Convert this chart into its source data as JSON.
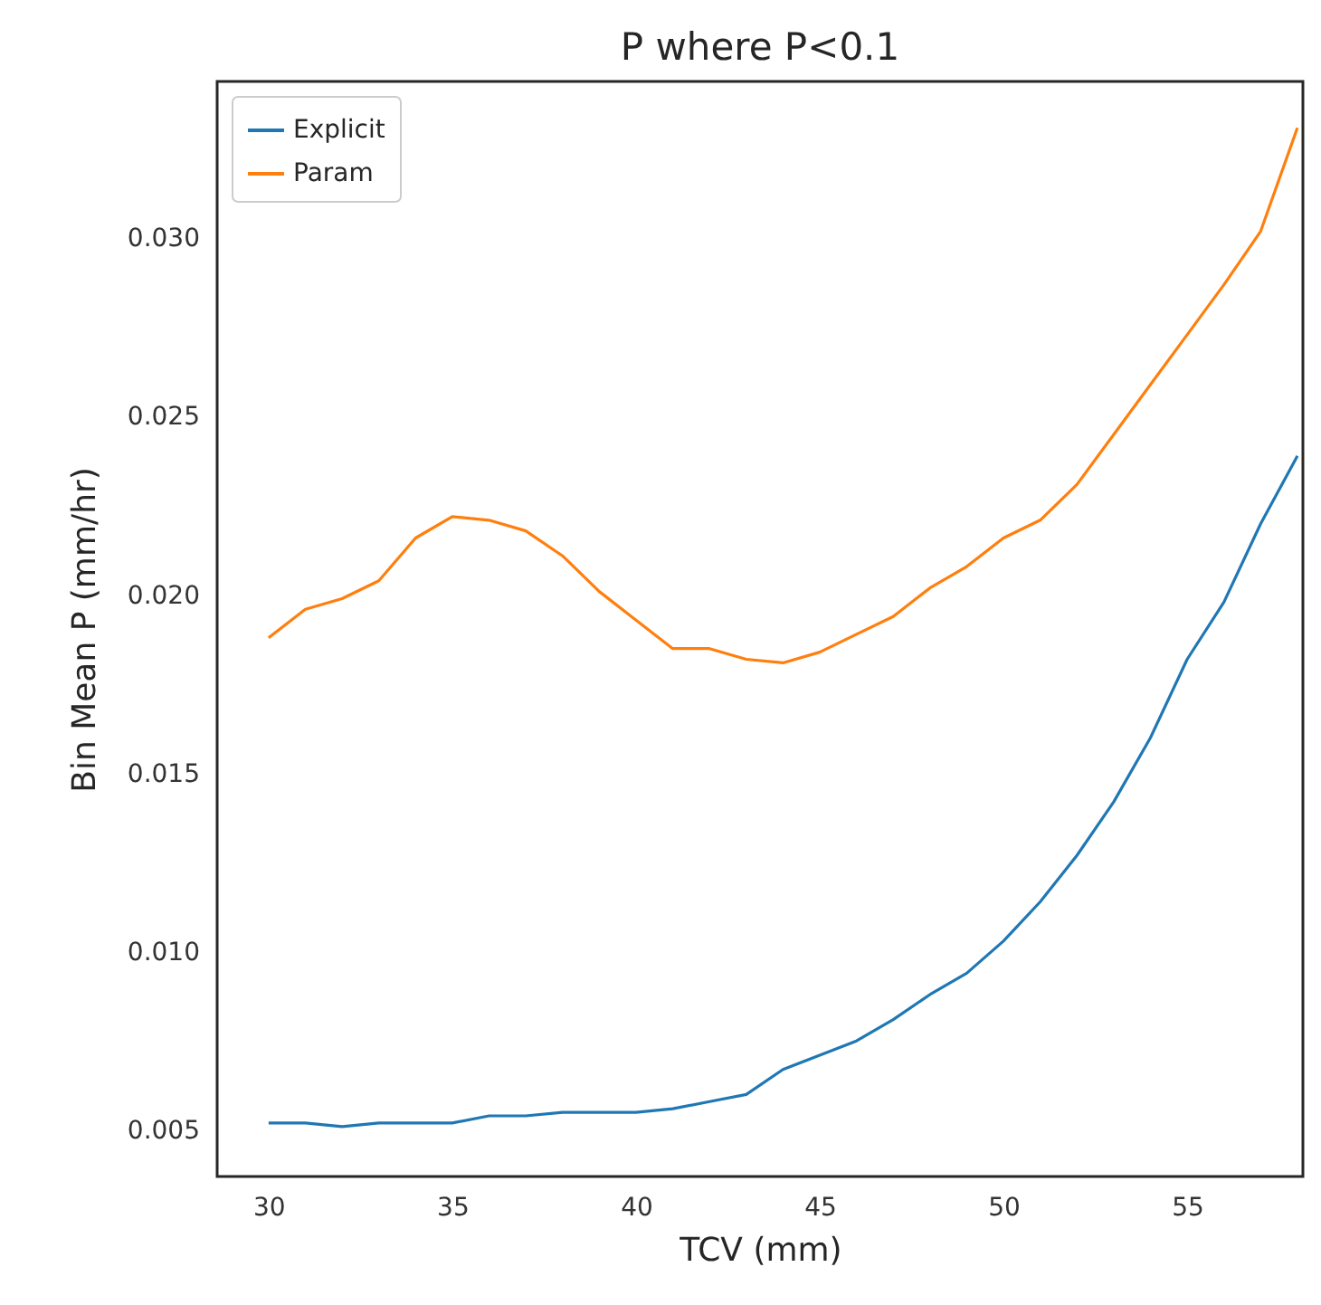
{
  "chart_data": {
    "type": "line",
    "title": "P where P<0.1",
    "xlabel": "TCV (mm)",
    "ylabel": "Bin Mean P (mm/hr)",
    "x": [
      30,
      31,
      32,
      33,
      34,
      35,
      36,
      37,
      38,
      39,
      40,
      41,
      42,
      43,
      44,
      45,
      46,
      47,
      48,
      49,
      50,
      51,
      52,
      53,
      54,
      55,
      56,
      57,
      58
    ],
    "series": [
      {
        "name": "Explicit",
        "color": "#1f77b4",
        "values": [
          0.0052,
          0.0052,
          0.0051,
          0.0052,
          0.0052,
          0.0052,
          0.0054,
          0.0054,
          0.0055,
          0.0055,
          0.0055,
          0.0056,
          0.0058,
          0.006,
          0.0067,
          0.0071,
          0.0075,
          0.0081,
          0.0088,
          0.0094,
          0.0103,
          0.0114,
          0.0127,
          0.0142,
          0.016,
          0.0182,
          0.0198,
          0.022,
          0.0239
        ]
      },
      {
        "name": "Param",
        "color": "#ff7f0e",
        "values": [
          0.0188,
          0.0196,
          0.0199,
          0.0204,
          0.0216,
          0.0222,
          0.0221,
          0.0218,
          0.0211,
          0.0201,
          0.0193,
          0.0185,
          0.0185,
          0.0182,
          0.0181,
          0.0184,
          0.0189,
          0.0194,
          0.0202,
          0.0208,
          0.0216,
          0.0221,
          0.0231,
          0.0245,
          0.0259,
          0.0273,
          0.0287,
          0.0302,
          0.0331
        ]
      }
    ],
    "xlim": [
      28.6,
      58.15
    ],
    "ylim": [
      0.0037,
      0.0344
    ],
    "xticks": [
      30,
      35,
      40,
      45,
      50,
      55
    ],
    "yticks": [
      {
        "value": 0.005,
        "label": "0.005"
      },
      {
        "value": 0.01,
        "label": "0.010"
      },
      {
        "value": 0.015,
        "label": "0.015"
      },
      {
        "value": 0.02,
        "label": "0.020"
      },
      {
        "value": 0.025,
        "label": "0.025"
      },
      {
        "value": 0.03,
        "label": "0.030"
      }
    ],
    "legend": "top left",
    "grid": false,
    "line_style": "solid"
  }
}
